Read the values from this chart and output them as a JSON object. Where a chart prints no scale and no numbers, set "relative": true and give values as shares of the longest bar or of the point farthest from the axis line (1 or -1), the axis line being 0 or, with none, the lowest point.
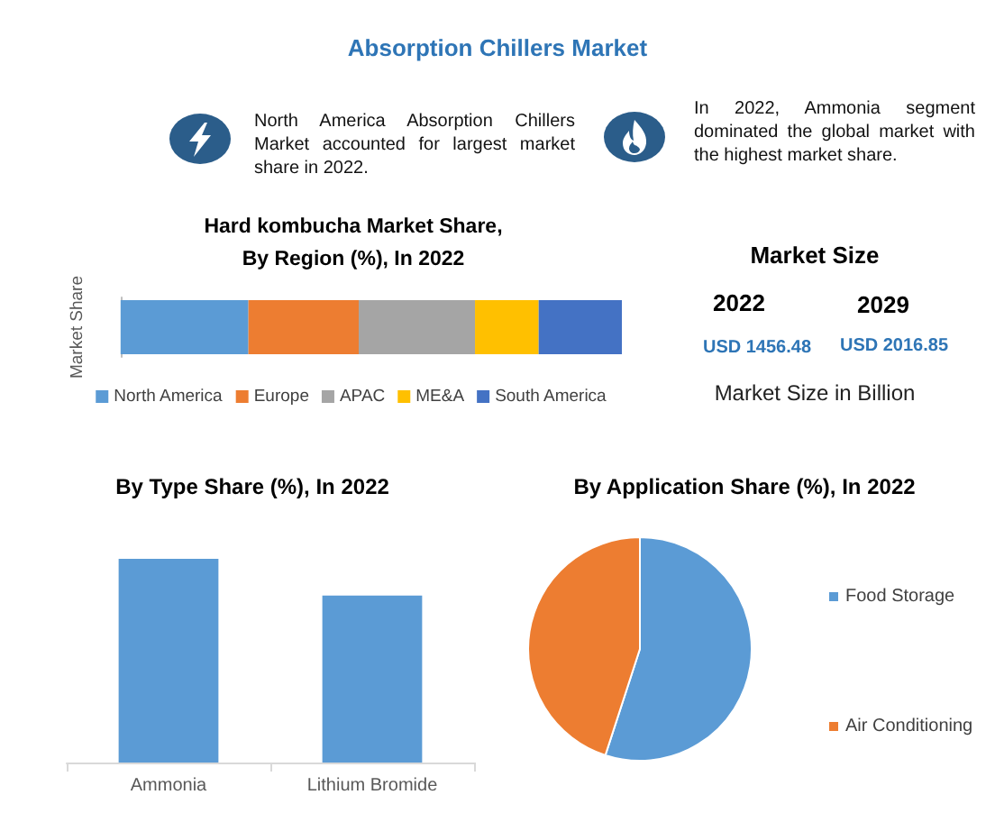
{
  "chart_data": [
    {
      "type": "other",
      "title": "Absorption Chillers Market",
      "annotations": [
        "North America Absorption Chillers Market accounted for largest market share in 2022.",
        "In 2022, Ammonia segment dominated the global market with the highest market share."
      ]
    },
    {
      "type": "bar",
      "orientation": "horizontal",
      "stacked": true,
      "relative": true,
      "title": "Hard kombucha Market Share, By Region (%), In 2022",
      "ylabel": "Market Share",
      "categories": [
        null
      ],
      "series": [
        {
          "name": "North America",
          "color": "#5b9bd5",
          "values": [
            0.255
          ]
        },
        {
          "name": "Europe",
          "color": "#ed7d31",
          "values": [
            0.22
          ]
        },
        {
          "name": "APAC",
          "color": "#a5a5a5",
          "values": [
            0.232
          ]
        },
        {
          "name": "ME&A",
          "color": "#ffc000",
          "values": [
            0.127
          ]
        },
        {
          "name": "South America",
          "color": "#4472c4",
          "values": [
            0.166
          ]
        }
      ],
      "legend": "bottom"
    },
    {
      "type": "other",
      "title": "Market Size",
      "annotations": [
        "2022",
        "2029",
        "USD 1456.48",
        "USD 2016.85",
        "Market Size in Billion"
      ]
    },
    {
      "type": "bar",
      "relative": true,
      "title": "By Type Share (%), In 2022",
      "categories": [
        "Ammonia",
        "Lithium Bromide"
      ],
      "values": [
        1,
        0.82
      ],
      "color": "#5b9bd5"
    },
    {
      "type": "pie",
      "title": "By Application Share (%), In 2022",
      "categories": [
        "Food Storage",
        "Air Conditioning"
      ],
      "values": [
        55,
        45
      ],
      "colors": [
        "#5b9bd5",
        "#ed7d31"
      ],
      "legend": "right"
    }
  ]
}
